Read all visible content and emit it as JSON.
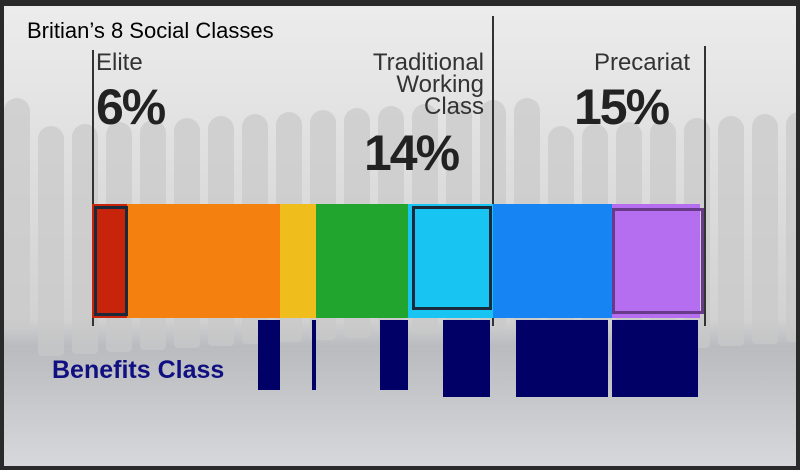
{
  "title": "Britian’s 8 Social Classes",
  "labels": {
    "elite": {
      "name": "Elite",
      "percent": "6%"
    },
    "traditional": {
      "name_line1": "Traditional",
      "name_line2": "Working",
      "name_line3": "Class",
      "percent": "14%"
    },
    "precariat": {
      "name": "Precariat",
      "percent": "15%"
    }
  },
  "benefits_label": "Benefits Class",
  "colors": {
    "segments": [
      "#c8240c",
      "#f3800f",
      "#f0be1c",
      "#22a52e",
      "#18c4f2",
      "#1684f2",
      "#b66ef0"
    ],
    "benefits_bars": "#000066"
  }
}
